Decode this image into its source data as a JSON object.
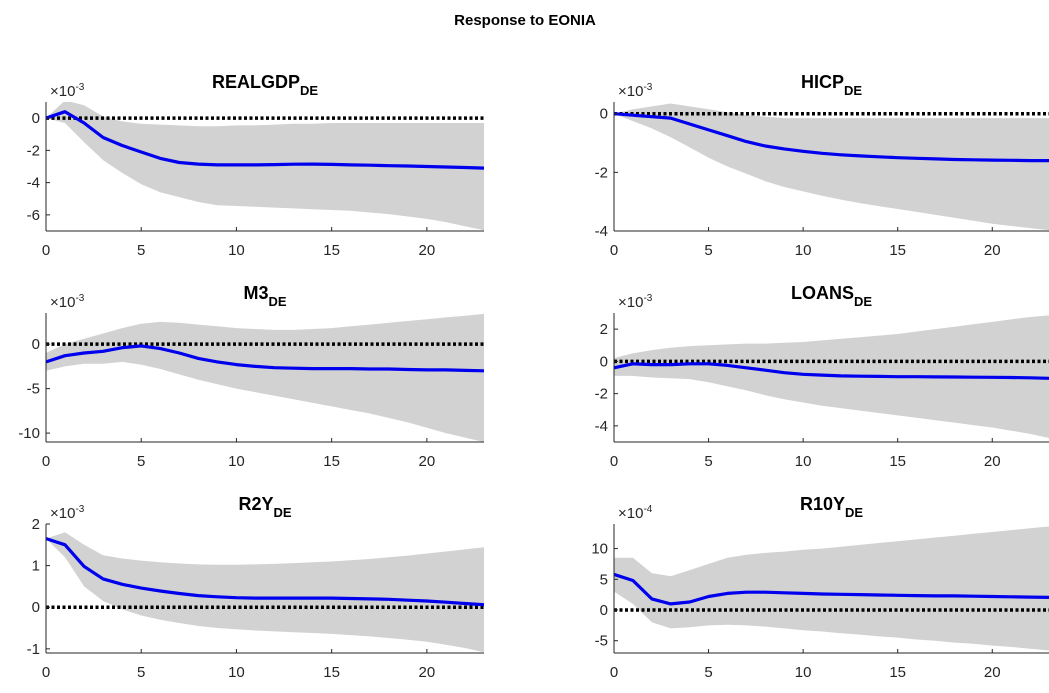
{
  "figure_title": "Response to EONIA",
  "colors": {
    "band": "#d2d2d2",
    "line": "#0000ee",
    "zero": "#000000",
    "axis": "#262626"
  },
  "chart_data": [
    {
      "type": "line",
      "title_main": "REALGDP",
      "title_sub": "DE",
      "scale_base": "×10",
      "scale_exp": "-3",
      "xlim": [
        0,
        23
      ],
      "ylim": [
        -7,
        1
      ],
      "xticks": [
        0,
        5,
        10,
        15,
        20
      ],
      "xtick_labels": [
        "0",
        "5",
        "10",
        "15",
        "20"
      ],
      "yticks": [
        0,
        -2,
        -4,
        -6
      ],
      "ytick_labels": [
        "0",
        "-2",
        "-4",
        "-6"
      ],
      "x": [
        0,
        1,
        2,
        3,
        4,
        5,
        6,
        7,
        8,
        9,
        10,
        11,
        12,
        13,
        14,
        15,
        16,
        17,
        18,
        19,
        20,
        21,
        22,
        23
      ],
      "y": [
        0.0,
        0.4,
        -0.3,
        -1.2,
        -1.7,
        -2.1,
        -2.5,
        -2.75,
        -2.85,
        -2.9,
        -2.9,
        -2.9,
        -2.88,
        -2.86,
        -2.85,
        -2.87,
        -2.9,
        -2.92,
        -2.95,
        -2.97,
        -3.0,
        -3.03,
        -3.06,
        -3.1
      ],
      "lower": [
        0.0,
        -0.3,
        -1.5,
        -2.6,
        -3.4,
        -4.1,
        -4.6,
        -4.9,
        -5.2,
        -5.4,
        -5.45,
        -5.5,
        -5.55,
        -5.6,
        -5.65,
        -5.7,
        -5.75,
        -5.85,
        -5.95,
        -6.1,
        -6.25,
        -6.45,
        -6.7,
        -6.95
      ],
      "upper": [
        0.0,
        1.1,
        0.8,
        0.1,
        -0.2,
        -0.35,
        -0.4,
        -0.45,
        -0.5,
        -0.5,
        -0.45,
        -0.45,
        -0.4,
        -0.35,
        -0.35,
        -0.3,
        -0.3,
        -0.3,
        -0.3,
        -0.3,
        -0.3,
        -0.3,
        -0.3,
        -0.3
      ]
    },
    {
      "type": "line",
      "title_main": "HICP",
      "title_sub": "DE",
      "scale_base": "×10",
      "scale_exp": "-3",
      "xlim": [
        0,
        23
      ],
      "ylim": [
        -4,
        0.4
      ],
      "xticks": [
        0,
        5,
        10,
        15,
        20
      ],
      "xtick_labels": [
        "0",
        "5",
        "10",
        "15",
        "20"
      ],
      "yticks": [
        0,
        -2,
        -4
      ],
      "ytick_labels": [
        "0",
        "-2",
        "-4"
      ],
      "x": [
        0,
        1,
        2,
        3,
        4,
        5,
        6,
        7,
        8,
        9,
        10,
        11,
        12,
        13,
        14,
        15,
        16,
        17,
        18,
        19,
        20,
        21,
        22,
        23
      ],
      "y": [
        0.0,
        -0.05,
        -0.1,
        -0.15,
        -0.35,
        -0.55,
        -0.75,
        -0.95,
        -1.1,
        -1.2,
        -1.28,
        -1.35,
        -1.4,
        -1.44,
        -1.47,
        -1.5,
        -1.52,
        -1.54,
        -1.56,
        -1.57,
        -1.58,
        -1.59,
        -1.6,
        -1.6
      ],
      "lower": [
        0.0,
        -0.25,
        -0.5,
        -0.8,
        -1.15,
        -1.5,
        -1.8,
        -2.05,
        -2.3,
        -2.5,
        -2.65,
        -2.8,
        -2.93,
        -3.05,
        -3.15,
        -3.25,
        -3.35,
        -3.45,
        -3.55,
        -3.65,
        -3.75,
        -3.83,
        -3.9,
        -3.97
      ],
      "upper": [
        0.0,
        0.15,
        0.25,
        0.35,
        0.25,
        0.15,
        0.05,
        -0.05,
        -0.1,
        -0.15,
        -0.15,
        -0.15,
        -0.15,
        -0.15,
        -0.15,
        -0.15,
        -0.15,
        -0.15,
        -0.15,
        -0.15,
        -0.15,
        -0.15,
        -0.15,
        -0.15
      ]
    },
    {
      "type": "line",
      "title_main": "M3",
      "title_sub": "DE",
      "scale_base": "×10",
      "scale_exp": "-3",
      "xlim": [
        0,
        23
      ],
      "ylim": [
        -11,
        3.5
      ],
      "xticks": [
        0,
        5,
        10,
        15,
        20
      ],
      "xtick_labels": [
        "0",
        "5",
        "10",
        "15",
        "20"
      ],
      "yticks": [
        0,
        -5,
        -10
      ],
      "ytick_labels": [
        "0",
        "-5",
        "-10"
      ],
      "x": [
        0,
        1,
        2,
        3,
        4,
        5,
        6,
        7,
        8,
        9,
        10,
        11,
        12,
        13,
        14,
        15,
        16,
        17,
        18,
        19,
        20,
        21,
        22,
        23
      ],
      "y": [
        -2.0,
        -1.3,
        -1.0,
        -0.8,
        -0.4,
        -0.2,
        -0.5,
        -1.0,
        -1.6,
        -2.0,
        -2.3,
        -2.5,
        -2.65,
        -2.7,
        -2.75,
        -2.75,
        -2.75,
        -2.8,
        -2.8,
        -2.85,
        -2.9,
        -2.9,
        -2.95,
        -3.0
      ],
      "lower": [
        -3.0,
        -2.5,
        -2.2,
        -2.2,
        -2.0,
        -2.3,
        -2.8,
        -3.4,
        -4.0,
        -4.5,
        -5.0,
        -5.4,
        -5.8,
        -6.2,
        -6.6,
        -7.0,
        -7.4,
        -7.8,
        -8.3,
        -8.8,
        -9.4,
        -10.0,
        -10.5,
        -11.0
      ],
      "upper": [
        -1.0,
        0.0,
        0.6,
        1.2,
        1.8,
        2.3,
        2.5,
        2.4,
        2.2,
        2.0,
        1.8,
        1.7,
        1.6,
        1.6,
        1.7,
        1.8,
        2.0,
        2.2,
        2.4,
        2.6,
        2.8,
        3.0,
        3.2,
        3.4
      ]
    },
    {
      "type": "line",
      "title_main": "LOANS",
      "title_sub": "DE",
      "scale_base": "×10",
      "scale_exp": "-3",
      "xlim": [
        0,
        23
      ],
      "ylim": [
        -5,
        3
      ],
      "xticks": [
        0,
        5,
        10,
        15,
        20
      ],
      "xtick_labels": [
        "0",
        "5",
        "10",
        "15",
        "20"
      ],
      "yticks": [
        2,
        0,
        -2,
        -4
      ],
      "ytick_labels": [
        "2",
        "0",
        "-2",
        "-4"
      ],
      "x": [
        0,
        1,
        2,
        3,
        4,
        5,
        6,
        7,
        8,
        9,
        10,
        11,
        12,
        13,
        14,
        15,
        16,
        17,
        18,
        19,
        20,
        21,
        22,
        23
      ],
      "y": [
        -0.4,
        -0.15,
        -0.2,
        -0.2,
        -0.15,
        -0.15,
        -0.25,
        -0.4,
        -0.55,
        -0.7,
        -0.8,
        -0.85,
        -0.9,
        -0.92,
        -0.93,
        -0.95,
        -0.95,
        -0.96,
        -0.97,
        -0.98,
        -0.99,
        -1.0,
        -1.02,
        -1.05
      ],
      "lower": [
        -0.9,
        -0.9,
        -1.0,
        -1.05,
        -1.1,
        -1.3,
        -1.55,
        -1.8,
        -2.1,
        -2.35,
        -2.55,
        -2.75,
        -2.9,
        -3.05,
        -3.2,
        -3.35,
        -3.5,
        -3.65,
        -3.8,
        -3.95,
        -4.1,
        -4.3,
        -4.5,
        -4.75
      ],
      "upper": [
        0.2,
        0.5,
        0.7,
        0.85,
        0.95,
        1.0,
        1.05,
        1.1,
        1.1,
        1.15,
        1.2,
        1.3,
        1.4,
        1.5,
        1.6,
        1.7,
        1.85,
        2.0,
        2.15,
        2.3,
        2.45,
        2.6,
        2.75,
        2.85
      ]
    },
    {
      "type": "line",
      "title_main": "R2Y",
      "title_sub": "DE",
      "scale_base": "×10",
      "scale_exp": "-3",
      "xlim": [
        0,
        23
      ],
      "ylim": [
        -1.1,
        2
      ],
      "xticks": [
        0,
        5,
        10,
        15,
        20
      ],
      "xtick_labels": [
        "0",
        "5",
        "10",
        "15",
        "20"
      ],
      "yticks": [
        2,
        1,
        0,
        -1
      ],
      "ytick_labels": [
        "2",
        "1",
        "0",
        "-1"
      ],
      "x": [
        0,
        1,
        2,
        3,
        4,
        5,
        6,
        7,
        8,
        9,
        10,
        11,
        12,
        13,
        14,
        15,
        16,
        17,
        18,
        19,
        20,
        21,
        22,
        23
      ],
      "y": [
        1.65,
        1.5,
        0.98,
        0.68,
        0.55,
        0.46,
        0.39,
        0.33,
        0.28,
        0.25,
        0.23,
        0.22,
        0.22,
        0.22,
        0.22,
        0.22,
        0.21,
        0.2,
        0.19,
        0.17,
        0.15,
        0.12,
        0.09,
        0.06
      ],
      "lower": [
        1.65,
        1.2,
        0.5,
        0.15,
        -0.05,
        -0.2,
        -0.3,
        -0.38,
        -0.45,
        -0.5,
        -0.53,
        -0.56,
        -0.58,
        -0.6,
        -0.62,
        -0.64,
        -0.67,
        -0.7,
        -0.74,
        -0.78,
        -0.83,
        -0.9,
        -0.98,
        -1.08
      ],
      "upper": [
        1.65,
        1.8,
        1.5,
        1.25,
        1.17,
        1.12,
        1.08,
        1.05,
        1.03,
        1.02,
        1.02,
        1.03,
        1.04,
        1.06,
        1.08,
        1.1,
        1.13,
        1.16,
        1.2,
        1.24,
        1.29,
        1.34,
        1.39,
        1.44
      ]
    },
    {
      "type": "line",
      "title_main": "R10Y",
      "title_sub": "DE",
      "scale_base": "×10",
      "scale_exp": "-4",
      "xlim": [
        0,
        23
      ],
      "ylim": [
        -7,
        14
      ],
      "xticks": [
        0,
        5,
        10,
        15,
        20
      ],
      "xtick_labels": [
        "0",
        "5",
        "10",
        "15",
        "20"
      ],
      "yticks": [
        10,
        5,
        0,
        -5
      ],
      "ytick_labels": [
        "10",
        "5",
        "0",
        "-5"
      ],
      "x": [
        0,
        1,
        2,
        3,
        4,
        5,
        6,
        7,
        8,
        9,
        10,
        11,
        12,
        13,
        14,
        15,
        16,
        17,
        18,
        19,
        20,
        21,
        22,
        23
      ],
      "y": [
        5.8,
        4.8,
        1.8,
        1.0,
        1.3,
        2.2,
        2.7,
        2.9,
        2.9,
        2.8,
        2.7,
        2.6,
        2.55,
        2.5,
        2.45,
        2.4,
        2.35,
        2.3,
        2.3,
        2.25,
        2.2,
        2.15,
        2.1,
        2.05
      ],
      "lower": [
        3.0,
        1.0,
        -2.0,
        -3.0,
        -2.8,
        -2.5,
        -2.4,
        -2.5,
        -2.7,
        -3.0,
        -3.3,
        -3.5,
        -3.8,
        -4.0,
        -4.3,
        -4.5,
        -4.8,
        -5.0,
        -5.3,
        -5.5,
        -5.8,
        -6.0,
        -6.3,
        -6.6
      ],
      "upper": [
        8.5,
        8.5,
        6.0,
        5.5,
        6.5,
        7.5,
        8.5,
        9.0,
        9.3,
        9.5,
        9.8,
        10.0,
        10.3,
        10.6,
        10.9,
        11.2,
        11.5,
        11.8,
        12.1,
        12.4,
        12.7,
        13.0,
        13.3,
        13.6
      ]
    }
  ]
}
